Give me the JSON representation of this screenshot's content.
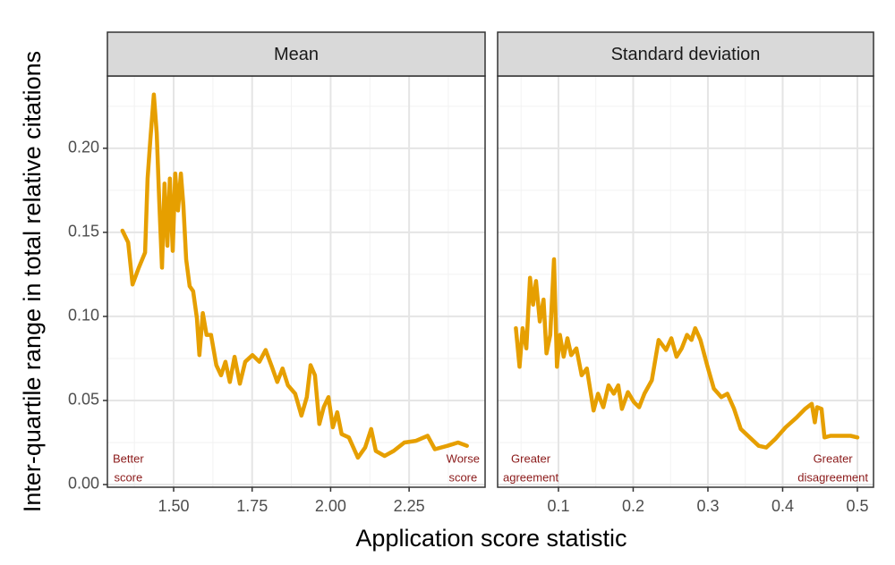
{
  "ylabel": "Inter-quartile range in total relative citations",
  "xlabel": "Application score statistic",
  "chart_data": [
    {
      "type": "line",
      "title": "Mean",
      "color": "#E69F00",
      "grid": true,
      "x": [
        1.337,
        1.355,
        1.369,
        1.389,
        1.409,
        1.417,
        1.426,
        1.437,
        1.446,
        1.454,
        1.463,
        1.471,
        1.48,
        1.488,
        1.497,
        1.505,
        1.514,
        1.523,
        1.531,
        1.54,
        1.551,
        1.562,
        1.574,
        1.582,
        1.593,
        1.605,
        1.619,
        1.636,
        1.651,
        1.665,
        1.679,
        1.694,
        1.711,
        1.728,
        1.751,
        1.773,
        1.793,
        1.813,
        1.83,
        1.847,
        1.864,
        1.887,
        1.907,
        1.924,
        1.936,
        1.95,
        1.964,
        1.978,
        1.993,
        2.007,
        2.021,
        2.035,
        2.058,
        2.087,
        2.11,
        2.129,
        2.144,
        2.172,
        2.201,
        2.235,
        2.272,
        2.309,
        2.332,
        2.372,
        2.406,
        2.434
      ],
      "values": [
        0.151,
        0.144,
        0.119,
        0.129,
        0.138,
        0.182,
        0.206,
        0.232,
        0.209,
        0.169,
        0.129,
        0.179,
        0.142,
        0.182,
        0.139,
        0.185,
        0.163,
        0.185,
        0.166,
        0.134,
        0.118,
        0.115,
        0.099,
        0.077,
        0.102,
        0.089,
        0.089,
        0.071,
        0.065,
        0.073,
        0.061,
        0.076,
        0.06,
        0.073,
        0.077,
        0.073,
        0.08,
        0.07,
        0.061,
        0.069,
        0.059,
        0.054,
        0.041,
        0.052,
        0.071,
        0.065,
        0.036,
        0.046,
        0.052,
        0.034,
        0.043,
        0.03,
        0.028,
        0.016,
        0.022,
        0.033,
        0.02,
        0.017,
        0.02,
        0.025,
        0.026,
        0.029,
        0.021,
        0.023,
        0.025,
        0.023
      ],
      "xlim": [
        1.289,
        2.492
      ],
      "xticks": [
        {
          "value": 1.5,
          "label": "1.50"
        },
        1.75,
        {
          "value": 2,
          "label": "2.00"
        },
        2.25
      ],
      "xminor_ticks": [
        1.375,
        1.625,
        1.875,
        2.125,
        2.375
      ],
      "ylim": [
        -0.0016,
        0.243
      ],
      "yticks": [
        {
          "value": 0,
          "label": "0.00"
        },
        {
          "value": 0.05,
          "label": "0.05"
        },
        {
          "value": 0.1,
          "label": "0.10"
        },
        {
          "value": 0.15,
          "label": "0.15"
        },
        {
          "value": 0.2,
          "label": "0.20"
        }
      ],
      "yminor_ticks": [
        0.025,
        0.075,
        0.125,
        0.175,
        0.225
      ],
      "annotations": [
        {
          "lines": [
            "Better",
            "score"
          ],
          "align": "left"
        },
        {
          "lines": [
            "Worse",
            "score"
          ],
          "align": "right"
        }
      ]
    },
    {
      "type": "line",
      "title": "Standard deviation",
      "color": "#E69F00",
      "grid": true,
      "x": [
        0.043,
        0.048,
        0.052,
        0.057,
        0.062,
        0.066,
        0.07,
        0.075,
        0.08,
        0.084,
        0.089,
        0.094,
        0.098,
        0.102,
        0.107,
        0.112,
        0.117,
        0.124,
        0.131,
        0.138,
        0.147,
        0.153,
        0.16,
        0.167,
        0.174,
        0.18,
        0.185,
        0.193,
        0.201,
        0.208,
        0.215,
        0.225,
        0.234,
        0.244,
        0.251,
        0.258,
        0.265,
        0.272,
        0.278,
        0.283,
        0.29,
        0.299,
        0.308,
        0.318,
        0.326,
        0.335,
        0.344,
        0.356,
        0.368,
        0.378,
        0.39,
        0.404,
        0.419,
        0.43,
        0.439,
        0.443,
        0.446,
        0.452,
        0.456,
        0.464,
        0.479,
        0.491,
        0.5
      ],
      "values": [
        0.093,
        0.07,
        0.093,
        0.081,
        0.123,
        0.107,
        0.121,
        0.097,
        0.11,
        0.078,
        0.089,
        0.134,
        0.07,
        0.089,
        0.076,
        0.087,
        0.077,
        0.081,
        0.065,
        0.069,
        0.044,
        0.054,
        0.046,
        0.059,
        0.054,
        0.059,
        0.045,
        0.055,
        0.049,
        0.046,
        0.054,
        0.062,
        0.086,
        0.08,
        0.087,
        0.076,
        0.081,
        0.089,
        0.086,
        0.093,
        0.086,
        0.071,
        0.057,
        0.052,
        0.054,
        0.045,
        0.033,
        0.028,
        0.023,
        0.022,
        0.027,
        0.034,
        0.04,
        0.045,
        0.048,
        0.037,
        0.046,
        0.045,
        0.028,
        0.029,
        0.029,
        0.029,
        0.028
      ],
      "xlim": [
        0.0186,
        0.5216
      ],
      "xticks": [
        0.1,
        0.2,
        0.3,
        0.4,
        0.5
      ],
      "xminor_ticks": [
        0.05,
        0.15,
        0.25,
        0.35,
        0.45
      ],
      "annotations": [
        {
          "lines": [
            "Greater",
            "agreement"
          ],
          "align": "left"
        },
        {
          "lines": [
            "Greater",
            "disagreement"
          ],
          "align": "right"
        }
      ]
    }
  ]
}
